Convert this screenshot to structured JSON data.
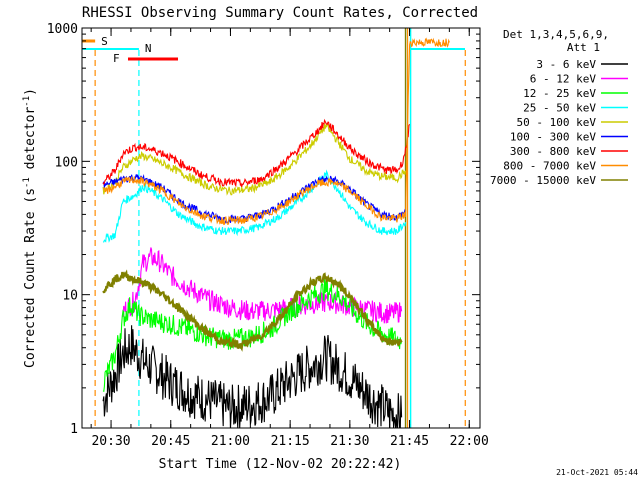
{
  "chart_data": {
    "type": "line",
    "title": "RHESSI Observing Summary Count Rates, Corrected",
    "xlabel": "Start Time (12-Nov-02 20:22:42)",
    "ylabel": "Corrected Count Rate (s⁻¹ detector⁻¹)",
    "ylabel_plain": "Corrected Count Rate (s",
    "ylabel_exp1": "-1",
    "ylabel_mid": " detector",
    "ylabel_exp2": "-1",
    "ylabel_end": ")",
    "yscale": "log",
    "ylim": [
      1,
      1000
    ],
    "xlim": [
      "20:22:42",
      "22:02:42"
    ],
    "x_ticks": [
      "20:30",
      "20:45",
      "21:00",
      "21:15",
      "21:30",
      "21:45",
      "22:00"
    ],
    "y_ticks": [
      "1",
      "10",
      "100",
      "1000"
    ],
    "legend_header": [
      "Det 1,3,4,5,6,9,",
      "Att 1"
    ],
    "legend_position": "top-right",
    "footer_date": "21-Oct-2021 05:44",
    "markers": [
      {
        "label": "S",
        "time": "20:26",
        "color": "#ff8c00"
      },
      {
        "label": "N",
        "time": "20:37",
        "color": "#00ffff"
      },
      {
        "label": "F",
        "time": "20:33",
        "color": "#ff0000"
      }
    ],
    "series": [
      {
        "name": "3 - 6 keV",
        "color": "#000000",
        "points": [
          [
            "20:28",
            1.6
          ],
          [
            "20:31",
            2.5
          ],
          [
            "20:33",
            3.6
          ],
          [
            "20:35",
            4.2
          ],
          [
            "20:38",
            3.2
          ],
          [
            "20:42",
            2.6
          ],
          [
            "20:45",
            2.2
          ],
          [
            "20:50",
            1.8
          ],
          [
            "20:55",
            1.6
          ],
          [
            "21:00",
            1.4
          ],
          [
            "21:05",
            1.5
          ],
          [
            "21:10",
            1.7
          ],
          [
            "21:15",
            2.3
          ],
          [
            "21:20",
            2.9
          ],
          [
            "21:24",
            3.4
          ],
          [
            "21:28",
            2.7
          ],
          [
            "21:32",
            2.1
          ],
          [
            "21:36",
            1.6
          ],
          [
            "21:40",
            1.3
          ],
          [
            "21:43",
            1.2
          ]
        ]
      },
      {
        "name": "6 - 12 keV",
        "color": "#ff00ff",
        "points": [
          [
            "20:33",
            7.5
          ],
          [
            "20:36",
            9
          ],
          [
            "20:38",
            17
          ],
          [
            "20:40",
            19
          ],
          [
            "20:42",
            18
          ],
          [
            "20:45",
            14
          ],
          [
            "20:50",
            11
          ],
          [
            "20:55",
            9
          ],
          [
            "21:00",
            8
          ],
          [
            "21:05",
            7.5
          ],
          [
            "21:10",
            7.6
          ],
          [
            "21:15",
            8
          ],
          [
            "21:20",
            8.5
          ],
          [
            "21:25",
            8.8
          ],
          [
            "21:30",
            8.2
          ],
          [
            "21:35",
            7.6
          ],
          [
            "21:40",
            7.2
          ],
          [
            "21:43",
            7.5
          ]
        ]
      },
      {
        "name": "12 - 25 keV",
        "color": "#00ff00",
        "points": [
          [
            "20:28",
            2.2
          ],
          [
            "20:31",
            3.5
          ],
          [
            "20:33",
            6.5
          ],
          [
            "20:35",
            8.5
          ],
          [
            "20:37",
            7
          ],
          [
            "20:40",
            6.5
          ],
          [
            "20:45",
            6
          ],
          [
            "20:50",
            5.4
          ],
          [
            "20:55",
            4.8
          ],
          [
            "21:00",
            4.6
          ],
          [
            "21:05",
            4.8
          ],
          [
            "21:10",
            5.5
          ],
          [
            "21:15",
            7.5
          ],
          [
            "21:20",
            9.5
          ],
          [
            "21:24",
            11
          ],
          [
            "21:28",
            9.5
          ],
          [
            "21:32",
            7
          ],
          [
            "21:36",
            5.5
          ],
          [
            "21:40",
            4.8
          ],
          [
            "21:43",
            4.5
          ]
        ]
      },
      {
        "name": "25 - 50 keV",
        "color": "#00ffff",
        "points": [
          [
            "20:28",
            26
          ],
          [
            "20:31",
            28
          ],
          [
            "20:33",
            50
          ],
          [
            "20:36",
            56
          ],
          [
            "20:38",
            65
          ],
          [
            "20:40",
            60
          ],
          [
            "20:43",
            52
          ],
          [
            "20:47",
            40
          ],
          [
            "20:52",
            33
          ],
          [
            "20:57",
            30
          ],
          [
            "21:02",
            30
          ],
          [
            "21:07",
            32
          ],
          [
            "21:12",
            38
          ],
          [
            "21:17",
            50
          ],
          [
            "21:21",
            65
          ],
          [
            "21:24",
            80
          ],
          [
            "21:27",
            62
          ],
          [
            "21:30",
            45
          ],
          [
            "21:34",
            35
          ],
          [
            "21:38",
            30
          ],
          [
            "21:42",
            30
          ],
          [
            "21:44",
            35
          ]
        ]
      },
      {
        "name": "50 - 100 keV",
        "color": "#cccc00",
        "points": [
          [
            "20:28",
            60
          ],
          [
            "20:31",
            70
          ],
          [
            "20:33",
            90
          ],
          [
            "20:36",
            105
          ],
          [
            "20:38",
            110
          ],
          [
            "20:41",
            102
          ],
          [
            "20:45",
            90
          ],
          [
            "20:50",
            75
          ],
          [
            "20:55",
            64
          ],
          [
            "21:00",
            60
          ],
          [
            "21:05",
            62
          ],
          [
            "21:10",
            70
          ],
          [
            "21:15",
            92
          ],
          [
            "21:20",
            130
          ],
          [
            "21:23",
            170
          ],
          [
            "21:24",
            185
          ],
          [
            "21:26",
            155
          ],
          [
            "21:30",
            105
          ],
          [
            "21:34",
            85
          ],
          [
            "21:38",
            77
          ],
          [
            "21:42",
            75
          ],
          [
            "21:44",
            85
          ]
        ]
      },
      {
        "name": "100 - 300 keV",
        "color": "#0000ff",
        "points": [
          [
            "20:28",
            66
          ],
          [
            "20:31",
            70
          ],
          [
            "20:33",
            74
          ],
          [
            "20:36",
            76
          ],
          [
            "20:39",
            72
          ],
          [
            "20:43",
            63
          ],
          [
            "20:48",
            48
          ],
          [
            "20:53",
            41
          ],
          [
            "20:58",
            37
          ],
          [
            "21:03",
            37
          ],
          [
            "21:08",
            40
          ],
          [
            "21:13",
            48
          ],
          [
            "21:18",
            60
          ],
          [
            "21:22",
            72
          ],
          [
            "21:26",
            73
          ],
          [
            "21:30",
            62
          ],
          [
            "21:34",
            48
          ],
          [
            "21:38",
            40
          ],
          [
            "21:42",
            38
          ],
          [
            "21:44",
            42
          ]
        ]
      },
      {
        "name": "300 - 800 keV",
        "color": "#ff0000",
        "points": [
          [
            "20:28",
            69
          ],
          [
            "20:31",
            85
          ],
          [
            "20:33",
            115
          ],
          [
            "20:36",
            128
          ],
          [
            "20:39",
            126
          ],
          [
            "20:43",
            115
          ],
          [
            "20:48",
            95
          ],
          [
            "20:53",
            78
          ],
          [
            "20:58",
            70
          ],
          [
            "21:03",
            68
          ],
          [
            "21:08",
            74
          ],
          [
            "21:13",
            95
          ],
          [
            "21:18",
            130
          ],
          [
            "21:22",
            170
          ],
          [
            "21:24",
            200
          ],
          [
            "21:27",
            158
          ],
          [
            "21:31",
            118
          ],
          [
            "21:35",
            97
          ],
          [
            "21:39",
            86
          ],
          [
            "21:42",
            86
          ],
          [
            "21:43",
            95
          ],
          [
            "21:44",
            120
          ],
          [
            "21:45",
            190
          ]
        ]
      },
      {
        "name": "800 - 7000 keV",
        "color": "#ff8c00",
        "points": [
          [
            "20:28",
            58
          ],
          [
            "20:31",
            65
          ],
          [
            "20:33",
            70
          ],
          [
            "20:36",
            73
          ],
          [
            "20:39",
            69
          ],
          [
            "20:43",
            60
          ],
          [
            "20:48",
            46
          ],
          [
            "20:53",
            39
          ],
          [
            "20:58",
            36
          ],
          [
            "21:03",
            36
          ],
          [
            "21:08",
            39
          ],
          [
            "21:13",
            46
          ],
          [
            "21:18",
            58
          ],
          [
            "21:22",
            68
          ],
          [
            "21:26",
            70
          ],
          [
            "21:30",
            60
          ],
          [
            "21:34",
            47
          ],
          [
            "21:38",
            38
          ],
          [
            "21:42",
            37
          ],
          [
            "21:44",
            40
          ],
          [
            "21:45",
            780
          ],
          [
            "21:55",
            780
          ]
        ]
      },
      {
        "name": "7000 - 15000 keV",
        "color": "#808000",
        "points": [
          [
            "20:28",
            11
          ],
          [
            "20:31",
            13
          ],
          [
            "20:33",
            14
          ],
          [
            "20:36",
            13
          ],
          [
            "20:39",
            12
          ],
          [
            "20:43",
            10
          ],
          [
            "20:48",
            7.5
          ],
          [
            "20:53",
            5.5
          ],
          [
            "20:58",
            4.4
          ],
          [
            "21:03",
            4.2
          ],
          [
            "21:08",
            5
          ],
          [
            "21:13",
            7
          ],
          [
            "21:17",
            10
          ],
          [
            "21:21",
            12.5
          ],
          [
            "21:24",
            13.5
          ],
          [
            "21:27",
            12
          ],
          [
            "21:31",
            9
          ],
          [
            "21:35",
            6
          ],
          [
            "21:39",
            4.5
          ],
          [
            "21:43",
            4.4
          ]
        ]
      }
    ]
  }
}
